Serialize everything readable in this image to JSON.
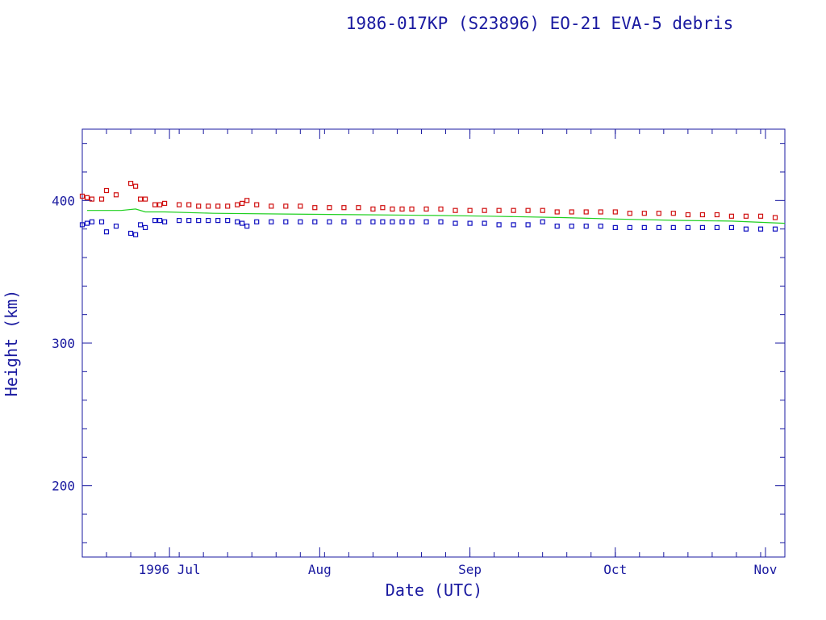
{
  "chart_data": {
    "type": "scatter",
    "title": "1986-017KP (S23896) EO-21 EVA-5 debris",
    "xlabel": "Date (UTC)",
    "ylabel": "Height (km)",
    "xlim": [
      "1996-06-13",
      "1996-11-05"
    ],
    "ylim": [
      150,
      450
    ],
    "grid": false,
    "x_ticks": [
      {
        "label": "1996 Jul",
        "date": "1996-07-01"
      },
      {
        "label": "Aug",
        "date": "1996-08-01"
      },
      {
        "label": "Sep",
        "date": "1996-09-01"
      },
      {
        "label": "Oct",
        "date": "1996-10-01"
      },
      {
        "label": "Nov",
        "date": "1996-11-01"
      }
    ],
    "y_ticks": [
      200,
      300,
      400
    ],
    "colors": {
      "apogee": "#d01010",
      "perigee": "#1010c0",
      "mean": "#20d020",
      "axis": "#1a1aa0"
    },
    "series": [
      {
        "marker": "square",
        "color": "#d01010",
        "points": [
          [
            "1996-06-13",
            403
          ],
          [
            "1996-06-14",
            402
          ],
          [
            "1996-06-15",
            401
          ],
          [
            "1996-06-17",
            401
          ],
          [
            "1996-06-18",
            407
          ],
          [
            "1996-06-20",
            404
          ],
          [
            "1996-06-23",
            412
          ],
          [
            "1996-06-24",
            410
          ],
          [
            "1996-06-25",
            401
          ],
          [
            "1996-06-26",
            401
          ],
          [
            "1996-06-28",
            397
          ],
          [
            "1996-06-29",
            397
          ],
          [
            "1996-06-30",
            398
          ],
          [
            "1996-07-03",
            397
          ],
          [
            "1996-07-05",
            397
          ],
          [
            "1996-07-07",
            396
          ],
          [
            "1996-07-09",
            396
          ],
          [
            "1996-07-11",
            396
          ],
          [
            "1996-07-13",
            396
          ],
          [
            "1996-07-15",
            397
          ],
          [
            "1996-07-16",
            398
          ],
          [
            "1996-07-17",
            400
          ],
          [
            "1996-07-19",
            397
          ],
          [
            "1996-07-22",
            396
          ],
          [
            "1996-07-25",
            396
          ],
          [
            "1996-07-28",
            396
          ],
          [
            "1996-07-31",
            395
          ],
          [
            "1996-08-03",
            395
          ],
          [
            "1996-08-06",
            395
          ],
          [
            "1996-08-09",
            395
          ],
          [
            "1996-08-12",
            394
          ],
          [
            "1996-08-14",
            395
          ],
          [
            "1996-08-16",
            394
          ],
          [
            "1996-08-18",
            394
          ],
          [
            "1996-08-20",
            394
          ],
          [
            "1996-08-23",
            394
          ],
          [
            "1996-08-26",
            394
          ],
          [
            "1996-08-29",
            393
          ],
          [
            "1996-09-01",
            393
          ],
          [
            "1996-09-04",
            393
          ],
          [
            "1996-09-07",
            393
          ],
          [
            "1996-09-10",
            393
          ],
          [
            "1996-09-13",
            393
          ],
          [
            "1996-09-16",
            393
          ],
          [
            "1996-09-19",
            392
          ],
          [
            "1996-09-22",
            392
          ],
          [
            "1996-09-25",
            392
          ],
          [
            "1996-09-28",
            392
          ],
          [
            "1996-10-01",
            392
          ],
          [
            "1996-10-04",
            391
          ],
          [
            "1996-10-07",
            391
          ],
          [
            "1996-10-10",
            391
          ],
          [
            "1996-10-13",
            391
          ],
          [
            "1996-10-16",
            390
          ],
          [
            "1996-10-19",
            390
          ],
          [
            "1996-10-22",
            390
          ],
          [
            "1996-10-25",
            389
          ],
          [
            "1996-10-28",
            389
          ],
          [
            "1996-10-31",
            389
          ],
          [
            "1996-11-03",
            388
          ]
        ]
      },
      {
        "marker": "square",
        "color": "#1010c0",
        "points": [
          [
            "1996-06-13",
            383
          ],
          [
            "1996-06-14",
            384
          ],
          [
            "1996-06-15",
            385
          ],
          [
            "1996-06-17",
            385
          ],
          [
            "1996-06-18",
            378
          ],
          [
            "1996-06-20",
            382
          ],
          [
            "1996-06-23",
            377
          ],
          [
            "1996-06-24",
            376
          ],
          [
            "1996-06-25",
            383
          ],
          [
            "1996-06-26",
            381
          ],
          [
            "1996-06-28",
            386
          ],
          [
            "1996-06-29",
            386
          ],
          [
            "1996-06-30",
            385
          ],
          [
            "1996-07-03",
            386
          ],
          [
            "1996-07-05",
            386
          ],
          [
            "1996-07-07",
            386
          ],
          [
            "1996-07-09",
            386
          ],
          [
            "1996-07-11",
            386
          ],
          [
            "1996-07-13",
            386
          ],
          [
            "1996-07-15",
            385
          ],
          [
            "1996-07-16",
            384
          ],
          [
            "1996-07-17",
            382
          ],
          [
            "1996-07-19",
            385
          ],
          [
            "1996-07-22",
            385
          ],
          [
            "1996-07-25",
            385
          ],
          [
            "1996-07-28",
            385
          ],
          [
            "1996-07-31",
            385
          ],
          [
            "1996-08-03",
            385
          ],
          [
            "1996-08-06",
            385
          ],
          [
            "1996-08-09",
            385
          ],
          [
            "1996-08-12",
            385
          ],
          [
            "1996-08-14",
            385
          ],
          [
            "1996-08-16",
            385
          ],
          [
            "1996-08-18",
            385
          ],
          [
            "1996-08-20",
            385
          ],
          [
            "1996-08-23",
            385
          ],
          [
            "1996-08-26",
            385
          ],
          [
            "1996-08-29",
            384
          ],
          [
            "1996-09-01",
            384
          ],
          [
            "1996-09-04",
            384
          ],
          [
            "1996-09-07",
            383
          ],
          [
            "1996-09-10",
            383
          ],
          [
            "1996-09-13",
            383
          ],
          [
            "1996-09-16",
            385
          ],
          [
            "1996-09-19",
            382
          ],
          [
            "1996-09-22",
            382
          ],
          [
            "1996-09-25",
            382
          ],
          [
            "1996-09-28",
            382
          ],
          [
            "1996-10-01",
            381
          ],
          [
            "1996-10-04",
            381
          ],
          [
            "1996-10-07",
            381
          ],
          [
            "1996-10-10",
            381
          ],
          [
            "1996-10-13",
            381
          ],
          [
            "1996-10-16",
            381
          ],
          [
            "1996-10-19",
            381
          ],
          [
            "1996-10-22",
            381
          ],
          [
            "1996-10-25",
            381
          ],
          [
            "1996-10-28",
            380
          ],
          [
            "1996-10-31",
            380
          ],
          [
            "1996-11-03",
            380
          ]
        ]
      },
      {
        "marker": "line",
        "color": "#20d020",
        "points": [
          [
            "1996-06-14",
            393
          ],
          [
            "1996-06-18",
            393
          ],
          [
            "1996-06-21",
            393
          ],
          [
            "1996-06-24",
            394
          ],
          [
            "1996-06-26",
            392
          ],
          [
            "1996-06-30",
            392
          ],
          [
            "1996-07-10",
            391
          ],
          [
            "1996-07-25",
            390.5
          ],
          [
            "1996-08-10",
            390
          ],
          [
            "1996-08-25",
            389.5
          ],
          [
            "1996-09-05",
            389
          ],
          [
            "1996-09-20",
            388
          ],
          [
            "1996-10-01",
            387
          ],
          [
            "1996-10-15",
            386
          ],
          [
            "1996-10-25",
            385.5
          ],
          [
            "1996-11-05",
            384
          ]
        ]
      }
    ]
  }
}
